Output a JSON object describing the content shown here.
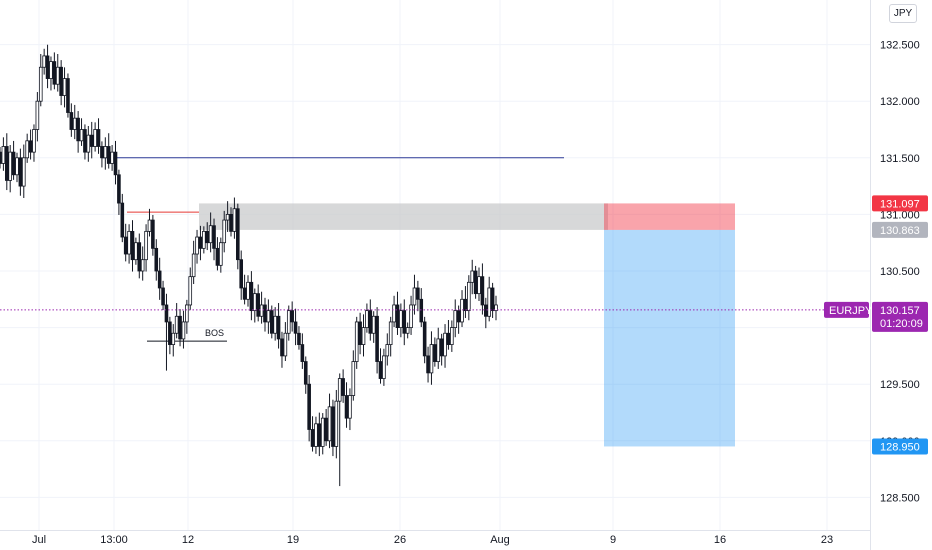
{
  "currency_label": "JPY",
  "symbol": "EURJPY",
  "countdown": "01:20:09",
  "annotation": "BOS",
  "colors": {
    "up": "#ffffff",
    "down": "#131722",
    "stop": "#f23645",
    "target": "#2196f3",
    "current": "#9c27b0",
    "zone": "#c8c9cb",
    "blue_line": "#2f3a96",
    "red_line": "#e53935"
  },
  "chart_data": {
    "type": "candlestick",
    "ylim": [
      128.4,
      132.85
    ],
    "y_ticks": [
      128.5,
      129.0,
      129.5,
      130.0,
      130.5,
      131.0,
      131.5,
      132.0,
      132.5
    ],
    "y_tick_labels": [
      "128.500",
      "129.000",
      "129.500",
      "130.000",
      "130.500",
      "131.000",
      "131.500",
      "132.000",
      "132.500"
    ],
    "x_tick_labels": [
      "Jul",
      "13:00",
      "12",
      "19",
      "26",
      "Aug",
      "9",
      "16",
      "23"
    ],
    "series": [
      {
        "values": [
          [
            131.55,
            131.45
          ],
          [
            131.45,
            131.6
          ],
          [
            131.6,
            131.3
          ],
          [
            131.3,
            131.55
          ],
          [
            131.55,
            131.35
          ],
          [
            131.35,
            131.5
          ],
          [
            131.5,
            131.25
          ],
          [
            131.25,
            131.5
          ],
          [
            131.5,
            131.65
          ],
          [
            131.65,
            131.55
          ],
          [
            131.55,
            131.75
          ],
          [
            131.75,
            132.0
          ],
          [
            132.0,
            132.3
          ],
          [
            132.3,
            132.4
          ],
          [
            132.4,
            132.2
          ],
          [
            132.2,
            132.35
          ],
          [
            132.35,
            132.15
          ],
          [
            132.15,
            132.3
          ],
          [
            132.3,
            132.05
          ],
          [
            132.05,
            132.2
          ],
          [
            132.2,
            131.9
          ],
          [
            131.9,
            131.75
          ],
          [
            131.75,
            131.85
          ],
          [
            131.85,
            131.65
          ],
          [
            131.65,
            131.75
          ],
          [
            131.75,
            131.55
          ],
          [
            131.55,
            131.7
          ],
          [
            131.7,
            131.6
          ],
          [
            131.6,
            131.75
          ],
          [
            131.75,
            131.6
          ],
          [
            131.6,
            131.5
          ],
          [
            131.5,
            131.6
          ],
          [
            131.6,
            131.45
          ],
          [
            131.45,
            131.55
          ],
          [
            131.55,
            131.35
          ],
          [
            131.35,
            131.1
          ],
          [
            131.1,
            130.8
          ],
          [
            130.8,
            130.65
          ],
          [
            130.65,
            130.85
          ],
          [
            130.85,
            130.6
          ],
          [
            130.6,
            130.75
          ],
          [
            130.75,
            130.5
          ],
          [
            130.5,
            130.6
          ],
          [
            130.6,
            130.85
          ],
          [
            130.85,
            130.95
          ],
          [
            130.95,
            130.7
          ],
          [
            130.7,
            130.5
          ],
          [
            130.5,
            130.35
          ],
          [
            130.35,
            130.2
          ],
          [
            130.2,
            130.05
          ],
          [
            130.05,
            129.85
          ],
          [
            129.85,
            129.95
          ],
          [
            129.95,
            130.1
          ],
          [
            130.1,
            129.9
          ],
          [
            129.9,
            130.05
          ],
          [
            130.05,
            130.2
          ],
          [
            130.2,
            130.45
          ],
          [
            130.45,
            130.65
          ],
          [
            130.65,
            130.8
          ],
          [
            130.8,
            130.7
          ],
          [
            130.7,
            130.85
          ],
          [
            130.85,
            130.75
          ],
          [
            130.75,
            130.9
          ],
          [
            130.9,
            130.7
          ],
          [
            130.7,
            130.55
          ],
          [
            130.55,
            130.75
          ],
          [
            130.75,
            130.95
          ],
          [
            130.95,
            131.0
          ],
          [
            131.0,
            130.85
          ],
          [
            130.85,
            131.05
          ],
          [
            131.05,
            130.6
          ],
          [
            130.6,
            130.35
          ],
          [
            130.35,
            130.25
          ],
          [
            130.25,
            130.4
          ],
          [
            130.4,
            130.15
          ],
          [
            130.15,
            130.3
          ],
          [
            130.3,
            130.1
          ],
          [
            130.1,
            130.2
          ],
          [
            130.2,
            130.05
          ],
          [
            130.05,
            130.15
          ],
          [
            130.15,
            129.95
          ],
          [
            129.95,
            130.1
          ],
          [
            130.1,
            129.9
          ],
          [
            129.9,
            129.75
          ],
          [
            129.75,
            129.95
          ],
          [
            129.95,
            130.15
          ],
          [
            130.15,
            130.05
          ],
          [
            130.05,
            129.95
          ],
          [
            129.95,
            129.85
          ],
          [
            129.85,
            129.7
          ],
          [
            129.7,
            129.5
          ],
          [
            129.5,
            129.1
          ],
          [
            129.1,
            128.95
          ],
          [
            128.95,
            129.15
          ],
          [
            129.15,
            128.95
          ],
          [
            128.95,
            129.2
          ],
          [
            129.2,
            129.0
          ],
          [
            129.0,
            129.3
          ],
          [
            129.3,
            128.95
          ],
          [
            128.95,
            129.35
          ],
          [
            129.35,
            129.55
          ],
          [
            129.55,
            129.4
          ],
          [
            129.4,
            129.2
          ],
          [
            129.2,
            129.4
          ],
          [
            129.4,
            129.7
          ],
          [
            129.7,
            130.05
          ],
          [
            130.05,
            129.85
          ],
          [
            129.85,
            130.0
          ],
          [
            130.0,
            130.15
          ],
          [
            130.15,
            129.95
          ],
          [
            129.95,
            130.1
          ],
          [
            130.1,
            129.7
          ],
          [
            129.7,
            129.55
          ],
          [
            129.55,
            129.75
          ],
          [
            129.75,
            129.85
          ],
          [
            129.85,
            130.05
          ],
          [
            130.05,
            130.2
          ],
          [
            130.2,
            130.0
          ],
          [
            130.0,
            130.15
          ],
          [
            130.15,
            129.95
          ],
          [
            129.95,
            130.0
          ],
          [
            130.0,
            130.2
          ],
          [
            130.2,
            130.35
          ],
          [
            130.35,
            130.25
          ],
          [
            130.25,
            130.05
          ],
          [
            130.05,
            129.75
          ],
          [
            129.75,
            129.6
          ],
          [
            129.6,
            129.85
          ],
          [
            129.85,
            129.7
          ],
          [
            129.7,
            129.9
          ],
          [
            129.9,
            129.75
          ],
          [
            129.75,
            129.95
          ],
          [
            129.95,
            129.85
          ],
          [
            129.85,
            130.0
          ],
          [
            130.0,
            130.15
          ],
          [
            130.15,
            130.05
          ],
          [
            130.05,
            130.25
          ],
          [
            130.25,
            130.15
          ],
          [
            130.15,
            130.4
          ],
          [
            130.4,
            130.5
          ],
          [
            130.5,
            130.3
          ],
          [
            130.3,
            130.45
          ],
          [
            130.45,
            130.2
          ],
          [
            130.2,
            130.1
          ],
          [
            130.1,
            130.35
          ],
          [
            130.35,
            130.15
          ],
          [
            130.15,
            130.2
          ]
        ]
      }
    ],
    "current_price": 130.157,
    "current_price_label": "130.157",
    "stop_price": 131.097,
    "stop_label": "131.097",
    "zone_low": 130.863,
    "zone_low_label": "130.863",
    "target_price": 128.95,
    "target_label": "128.950",
    "horizontal_level": 131.5,
    "swing_high_level": 131.02,
    "bos_level": 129.88
  }
}
